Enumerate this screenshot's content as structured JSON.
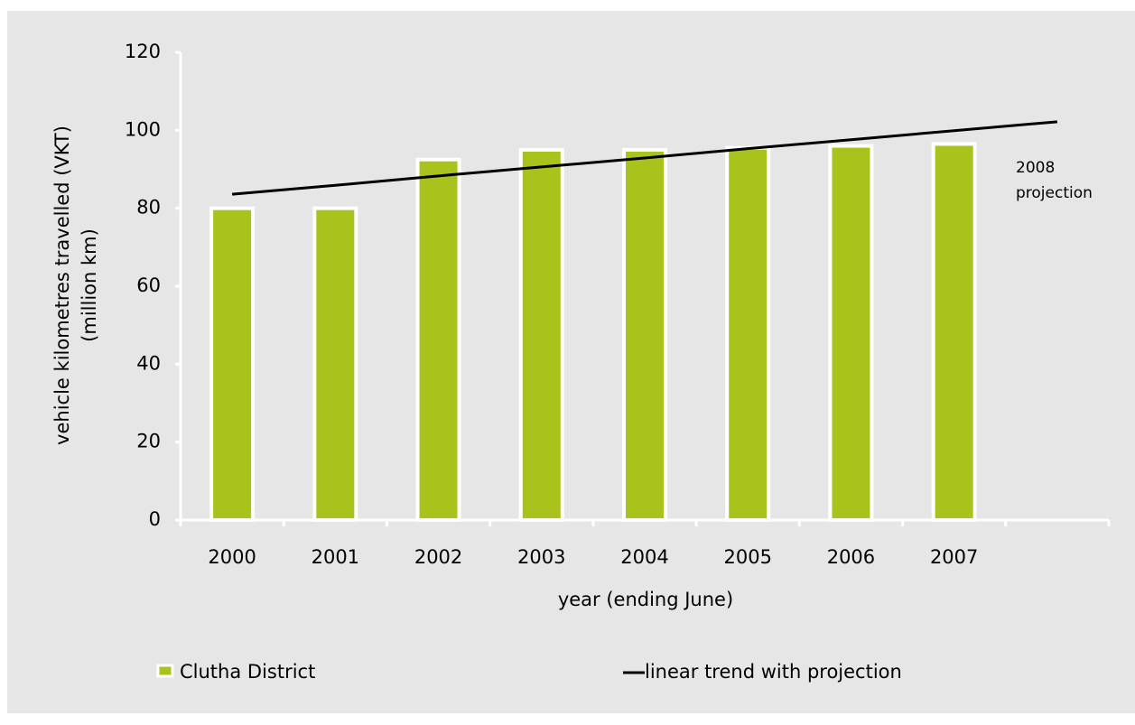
{
  "chart_data": {
    "type": "bar",
    "categories": [
      "2000",
      "2001",
      "2002",
      "2003",
      "2004",
      "2005",
      "2006",
      "2007",
      null
    ],
    "series": [
      {
        "name": "Clutha District",
        "type": "bar",
        "color": "#a9c21c",
        "values": [
          80,
          80,
          92.5,
          95,
          95,
          95.5,
          96,
          96.5,
          null
        ]
      },
      {
        "name": "linear trend with projection",
        "type": "line",
        "color": "#000000",
        "values": [
          83.6,
          85.9,
          88.3,
          90.6,
          92.9,
          95.3,
          97.6,
          99.9,
          102.2
        ]
      }
    ],
    "ylim": [
      0,
      120
    ],
    "yticks": [
      0,
      20,
      40,
      60,
      80,
      100,
      120
    ],
    "grid": false,
    "xlabel": "year (ending June)",
    "ylabel": [
      "vehicle kilometres travelled (VKT)",
      "(million km)"
    ],
    "annotation": "2008 projection",
    "legend": "bottom"
  }
}
